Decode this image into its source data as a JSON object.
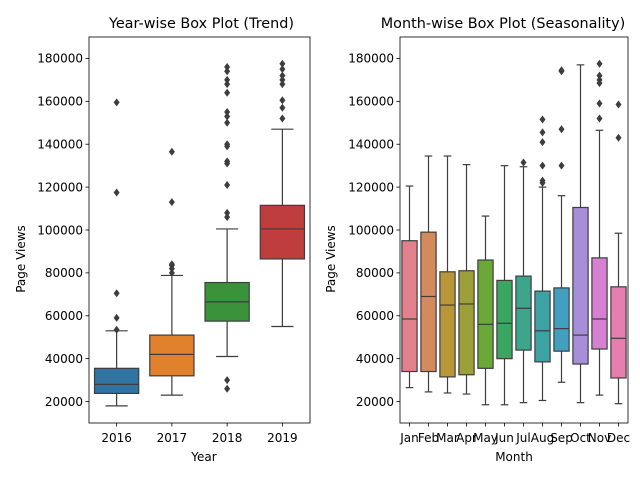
{
  "chart_data": [
    {
      "type": "box",
      "title": "Year-wise Box Plot (Trend)",
      "xlabel": "Year",
      "ylabel": "Page Views",
      "ylim": [
        10000,
        190000
      ],
      "yticks": [
        20000,
        40000,
        60000,
        80000,
        100000,
        120000,
        140000,
        160000,
        180000
      ],
      "categories": [
        "2016",
        "2017",
        "2018",
        "2019"
      ],
      "boxes": [
        {
          "category": "2016",
          "color": "#3274a1",
          "whisker_low": 18000,
          "q1": 23800,
          "median": 28000,
          "q3": 35500,
          "whisker_high": 53000,
          "outliers": [
            53500,
            59000,
            70500,
            117500,
            159500
          ]
        },
        {
          "category": "2017",
          "color": "#e1812c",
          "whisker_low": 23000,
          "q1": 32000,
          "median": 42000,
          "q3": 51000,
          "whisker_high": 78800,
          "outliers": [
            80000,
            82000,
            83500,
            84000,
            113000,
            136500
          ]
        },
        {
          "category": "2018",
          "color": "#3a923a",
          "whisker_low": 41000,
          "q1": 57500,
          "median": 66500,
          "q3": 75500,
          "whisker_high": 100500,
          "outliers": [
            26000,
            30000,
            106000,
            108000,
            121000,
            131000,
            132000,
            139000,
            140000,
            150000,
            153000,
            155000,
            164000,
            168000,
            170000,
            174000,
            176000
          ]
        },
        {
          "category": "2019",
          "color": "#c03d3e",
          "whisker_low": 55000,
          "q1": 86500,
          "median": 100500,
          "q3": 111500,
          "whisker_high": 147000,
          "outliers": [
            152000,
            157000,
            160500,
            168000,
            170000,
            172000,
            175000,
            177500
          ]
        }
      ]
    },
    {
      "type": "box",
      "title": "Month-wise Box Plot (Seasonality)",
      "xlabel": "Month",
      "ylabel": "Page Views",
      "ylim": [
        10000,
        190000
      ],
      "yticks": [
        20000,
        40000,
        60000,
        80000,
        100000,
        120000,
        140000,
        160000,
        180000
      ],
      "categories": [
        "Jan",
        "Feb",
        "Mar",
        "Apr",
        "May",
        "Jun",
        "Jul",
        "Aug",
        "Sep",
        "Oct",
        "Nov",
        "Dec"
      ],
      "boxes": [
        {
          "category": "Jan",
          "color": "#e1818c",
          "whisker_low": 26500,
          "q1": 34000,
          "median": 58500,
          "q3": 95000,
          "whisker_high": 120500,
          "outliers": []
        },
        {
          "category": "Feb",
          "color": "#d38b5d",
          "whisker_low": 24500,
          "q1": 34000,
          "median": 69000,
          "q3": 99000,
          "whisker_high": 134500,
          "outliers": []
        },
        {
          "category": "Mar",
          "color": "#b99738",
          "whisker_low": 24000,
          "q1": 31500,
          "median": 65000,
          "q3": 80500,
          "whisker_high": 134500,
          "outliers": []
        },
        {
          "category": "Apr",
          "color": "#9d9f38",
          "whisker_low": 23500,
          "q1": 32500,
          "median": 65500,
          "q3": 81000,
          "whisker_high": 130500,
          "outliers": []
        },
        {
          "category": "May",
          "color": "#6aa838",
          "whisker_low": 18500,
          "q1": 35500,
          "median": 56000,
          "q3": 86000,
          "whisker_high": 106500,
          "outliers": []
        },
        {
          "category": "Jun",
          "color": "#3aa65f",
          "whisker_low": 18500,
          "q1": 40000,
          "median": 56500,
          "q3": 76500,
          "whisker_high": 130000,
          "outliers": []
        },
        {
          "category": "Jul",
          "color": "#3ca58b",
          "whisker_low": 19500,
          "q1": 44000,
          "median": 63500,
          "q3": 78500,
          "whisker_high": 129500,
          "outliers": [
            131500
          ]
        },
        {
          "category": "Aug",
          "color": "#3da2a4",
          "whisker_low": 20500,
          "q1": 38500,
          "median": 53000,
          "q3": 71500,
          "whisker_high": 120000,
          "outliers": [
            122000,
            123000,
            130000,
            141000,
            145500,
            151500
          ]
        },
        {
          "category": "Sep",
          "color": "#41a0c0",
          "whisker_low": 29000,
          "q1": 43500,
          "median": 54000,
          "q3": 73000,
          "whisker_high": 116000,
          "outliers": [
            130000,
            147000,
            174000,
            174500
          ]
        },
        {
          "category": "Oct",
          "color": "#a68fd8",
          "whisker_low": 19500,
          "q1": 37500,
          "median": 51000,
          "q3": 110500,
          "whisker_high": 177000,
          "outliers": []
        },
        {
          "category": "Nov",
          "color": "#d580d0",
          "whisker_low": 23000,
          "q1": 44500,
          "median": 58500,
          "q3": 87000,
          "whisker_high": 146500,
          "outliers": [
            152000,
            159000,
            168500,
            170000,
            172000,
            177500
          ]
        },
        {
          "category": "Dec",
          "color": "#e67fb0",
          "whisker_low": 19000,
          "q1": 31000,
          "median": 49500,
          "q3": 73500,
          "whisker_high": 98500,
          "outliers": [
            143000,
            158500
          ]
        }
      ]
    }
  ]
}
